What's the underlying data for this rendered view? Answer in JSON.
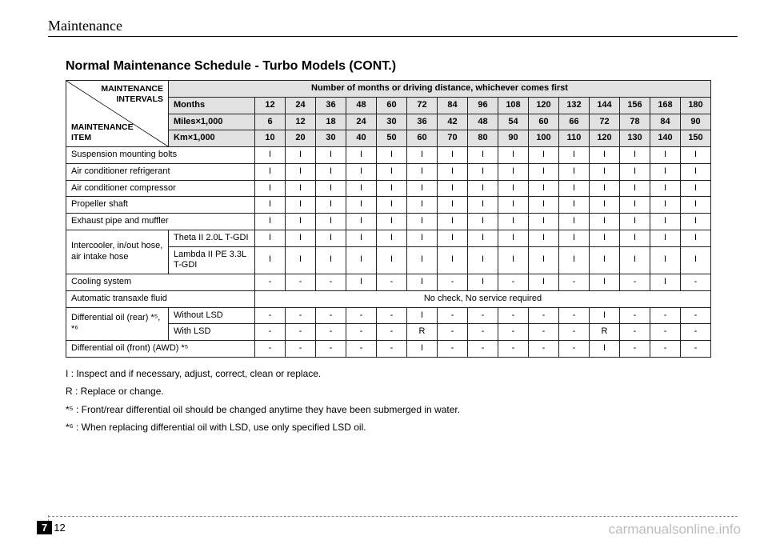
{
  "section_header": "Maintenance",
  "title": "Normal Maintenance Schedule - Turbo Models (CONT.)",
  "header": {
    "diag_upper": "MAINTENANCE INTERVALS",
    "diag_lower": "MAINTENANCE ITEM",
    "banner": "Number of months or driving distance, whichever comes first",
    "unit_rows": [
      {
        "label": "Months",
        "vals": [
          "12",
          "24",
          "36",
          "48",
          "60",
          "72",
          "84",
          "96",
          "108",
          "120",
          "132",
          "144",
          "156",
          "168",
          "180"
        ]
      },
      {
        "label": "Miles×1,000",
        "vals": [
          "6",
          "12",
          "18",
          "24",
          "30",
          "36",
          "42",
          "48",
          "54",
          "60",
          "66",
          "72",
          "78",
          "84",
          "90"
        ]
      },
      {
        "label": "Km×1,000",
        "vals": [
          "10",
          "20",
          "30",
          "40",
          "50",
          "60",
          "70",
          "80",
          "90",
          "100",
          "110",
          "120",
          "130",
          "140",
          "150"
        ]
      }
    ]
  },
  "rows": [
    {
      "label": "Suspension mounting bolts",
      "cells": [
        "I",
        "I",
        "I",
        "I",
        "I",
        "I",
        "I",
        "I",
        "I",
        "I",
        "I",
        "I",
        "I",
        "I",
        "I"
      ]
    },
    {
      "label": "Air conditioner refrigerant",
      "cells": [
        "I",
        "I",
        "I",
        "I",
        "I",
        "I",
        "I",
        "I",
        "I",
        "I",
        "I",
        "I",
        "I",
        "I",
        "I"
      ]
    },
    {
      "label": "Air conditioner compressor",
      "cells": [
        "I",
        "I",
        "I",
        "I",
        "I",
        "I",
        "I",
        "I",
        "I",
        "I",
        "I",
        "I",
        "I",
        "I",
        "I"
      ]
    },
    {
      "label": "Propeller shaft",
      "cells": [
        "I",
        "I",
        "I",
        "I",
        "I",
        "I",
        "I",
        "I",
        "I",
        "I",
        "I",
        "I",
        "I",
        "I",
        "I"
      ]
    },
    {
      "label": "Exhaust pipe and muffler",
      "cells": [
        "I",
        "I",
        "I",
        "I",
        "I",
        "I",
        "I",
        "I",
        "I",
        "I",
        "I",
        "I",
        "I",
        "I",
        "I"
      ]
    },
    {
      "label": "Intercooler, in/out hose, air intake hose",
      "sublabels": [
        "Theta II 2.0L T-GDI",
        "Lambda II PE 3.3L T-GDI"
      ],
      "subcells": [
        [
          "I",
          "I",
          "I",
          "I",
          "I",
          "I",
          "I",
          "I",
          "I",
          "I",
          "I",
          "I",
          "I",
          "I",
          "I"
        ],
        [
          "I",
          "I",
          "I",
          "I",
          "I",
          "I",
          "I",
          "I",
          "I",
          "I",
          "I",
          "I",
          "I",
          "I",
          "I"
        ]
      ]
    },
    {
      "label": "Cooling system",
      "cells": [
        "-",
        "-",
        "-",
        "I",
        "-",
        "I",
        "-",
        "I",
        "-",
        "I",
        "-",
        "I",
        "-",
        "I",
        "-"
      ]
    },
    {
      "label": "Automatic transaxle fluid",
      "merged_text": "No check, No service required"
    },
    {
      "label": "Differential oil (rear) *⁵, *⁶",
      "sublabels": [
        "Without LSD",
        "With LSD"
      ],
      "subcells": [
        [
          "-",
          "-",
          "-",
          "-",
          "-",
          "I",
          "-",
          "-",
          "-",
          "-",
          "-",
          "I",
          "-",
          "-",
          "-"
        ],
        [
          "-",
          "-",
          "-",
          "-",
          "-",
          "R",
          "-",
          "-",
          "-",
          "-",
          "-",
          "R",
          "-",
          "-",
          "-"
        ]
      ]
    },
    {
      "label": "Differential oil (front) (AWD) *⁵",
      "cells": [
        "-",
        "-",
        "-",
        "-",
        "-",
        "I",
        "-",
        "-",
        "-",
        "-",
        "-",
        "I",
        "-",
        "-",
        "-"
      ]
    }
  ],
  "notes": [
    "I   : Inspect and if necessary, adjust, correct, clean or replace.",
    "R  : Replace or change.",
    "*⁵ : Front/rear differential oil should be changed anytime they have been submerged in water.",
    "*⁶ : When replacing differential oil with LSD, use only specified LSD oil."
  ],
  "page": {
    "chapter": "7",
    "number": "12"
  },
  "watermark": "carmanualsonline.info",
  "colors": {
    "shade": "#e1e1e1",
    "rule": "#000000",
    "dash": "#888888",
    "watermark": "#bdbdbd"
  }
}
